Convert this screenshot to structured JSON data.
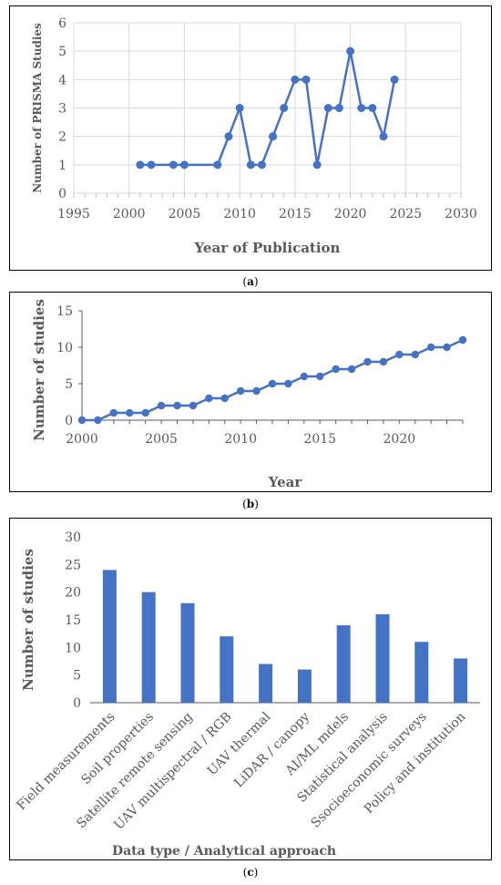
{
  "chart_data": [
    {
      "type": "line",
      "panel": "a",
      "xlabel": "Year of Publication",
      "ylabel": "Number of PRISMA Studies",
      "xlim": [
        1995,
        2030
      ],
      "ylim": [
        0,
        6
      ],
      "xticks": [
        1995,
        2000,
        2005,
        2010,
        2015,
        2020,
        2025,
        2030
      ],
      "yticks": [
        0,
        1,
        2,
        3,
        4,
        5,
        6
      ],
      "grid": true,
      "color": "#4472C4",
      "x": [
        2001,
        2002,
        2004,
        2005,
        2008,
        2009,
        2010,
        2011,
        2012,
        2013,
        2014,
        2015,
        2016,
        2017,
        2018,
        2019,
        2020,
        2021,
        2022,
        2023,
        2024
      ],
      "y": [
        1,
        1,
        1,
        1,
        1,
        2,
        3,
        1,
        1,
        2,
        3,
        4,
        4,
        1,
        3,
        3,
        5,
        3,
        3,
        2,
        4
      ]
    },
    {
      "type": "line",
      "panel": "b",
      "xlabel": "Year",
      "ylabel": "Number of studies",
      "xlim": [
        2000,
        2024
      ],
      "ylim": [
        0,
        15
      ],
      "xticks": [
        2000,
        2005,
        2010,
        2015,
        2020
      ],
      "yticks": [
        0,
        5,
        10,
        15
      ],
      "grid": false,
      "color": "#4472C4",
      "x": [
        2000,
        2001,
        2002,
        2003,
        2004,
        2005,
        2006,
        2007,
        2008,
        2009,
        2010,
        2011,
        2012,
        2013,
        2014,
        2015,
        2016,
        2017,
        2018,
        2019,
        2020,
        2021,
        2022,
        2023,
        2024
      ],
      "y": [
        0,
        0,
        1,
        1,
        1,
        2,
        2,
        2,
        3,
        3,
        4,
        4,
        5,
        5,
        6,
        6,
        7,
        7,
        8,
        8,
        9,
        9,
        10,
        10,
        11
      ]
    },
    {
      "type": "bar",
      "panel": "c",
      "xlabel": "Data type / Analytical approach",
      "ylabel": "Number of studies",
      "ylim": [
        0,
        30
      ],
      "yticks": [
        0,
        5,
        10,
        15,
        20,
        25,
        30
      ],
      "grid": false,
      "color": "#4472C4",
      "categories": [
        "Field measurements",
        "Soil properties",
        "Satellite remote sensing",
        "UAV multispectral / RGB",
        "UAV thermal",
        "LiDAR / canopy",
        "AI/ML mdels",
        "Statistical analysis",
        "Ssocioeconomic surveys",
        "Policy and institution"
      ],
      "values": [
        24,
        20,
        18,
        12,
        7,
        6,
        14,
        16,
        11,
        8
      ]
    }
  ],
  "captions": {
    "a": "a",
    "b": "b",
    "c": "c"
  }
}
